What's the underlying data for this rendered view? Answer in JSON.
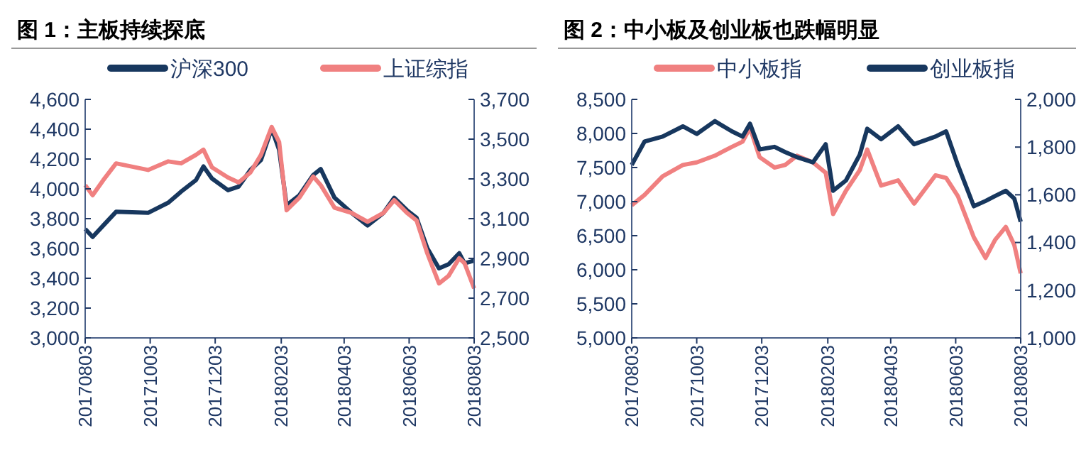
{
  "chart_data": [
    {
      "type": "line",
      "title": "图 1：主板持续探底",
      "legend": "top",
      "grid": false,
      "xlim": [
        "2017-08-03",
        "2018-08-03"
      ],
      "xticks": [
        {
          "value": "2017-08-03",
          "label": "20170803"
        },
        {
          "value": "2017-10-03",
          "label": "20171003"
        },
        {
          "value": "2017-12-03",
          "label": "20171203"
        },
        {
          "value": "2018-02-03",
          "label": "20180203"
        },
        {
          "value": "2018-04-03",
          "label": "20180403"
        },
        {
          "value": "2018-06-03",
          "label": "20180603"
        },
        {
          "value": "2018-08-03",
          "label": "20180803"
        }
      ],
      "ylim": [
        3000,
        4600
      ],
      "yticks": [
        {
          "value": 3000,
          "label": "3,000"
        },
        {
          "value": 3200,
          "label": "3,200"
        },
        {
          "value": 3400,
          "label": "3,400"
        },
        {
          "value": 3600,
          "label": "3,600"
        },
        {
          "value": 3800,
          "label": "3,800"
        },
        {
          "value": 4000,
          "label": "4,000"
        },
        {
          "value": 4200,
          "label": "4,200"
        },
        {
          "value": 4400,
          "label": "4,400"
        },
        {
          "value": 4600,
          "label": "4,600"
        }
      ],
      "y2lim": [
        2500,
        3700
      ],
      "y2ticks": [
        {
          "value": 2500,
          "label": "2,500"
        },
        {
          "value": 2700,
          "label": "2,700"
        },
        {
          "value": 2900,
          "label": "2,900"
        },
        {
          "value": 3100,
          "label": "3,100"
        },
        {
          "value": 3300,
          "label": "3,300"
        },
        {
          "value": 3500,
          "label": "3,500"
        },
        {
          "value": 3700,
          "label": "3,700"
        }
      ],
      "x": [
        "2017-08-03",
        "2017-08-10",
        "2017-08-20",
        "2017-09-01",
        "2017-10-01",
        "2017-10-20",
        "2017-11-01",
        "2017-11-15",
        "2017-11-22",
        "2017-11-30",
        "2017-12-15",
        "2017-12-25",
        "2018-01-05",
        "2018-01-15",
        "2018-01-25",
        "2018-02-01",
        "2018-02-08",
        "2018-02-20",
        "2018-03-05",
        "2018-03-12",
        "2018-03-25",
        "2018-04-10",
        "2018-04-25",
        "2018-05-10",
        "2018-05-20",
        "2018-06-01",
        "2018-06-10",
        "2018-06-20",
        "2018-07-01",
        "2018-07-10",
        "2018-07-20",
        "2018-07-25",
        "2018-08-03"
      ],
      "series": [
        {
          "name": "沪深300",
          "color": "#17375e",
          "values": [
            3731,
            3677,
            3754,
            3846,
            3839,
            3907,
            3981,
            4059,
            4150,
            4069,
            3991,
            4015,
            4126,
            4194,
            4404,
            4262,
            3890,
            3957,
            4093,
            4133,
            3940,
            3839,
            3754,
            3839,
            3940,
            3856,
            3805,
            3602,
            3467,
            3494,
            3568,
            3501,
            3518
          ]
        },
        {
          "name": "上证综指",
          "color": "#f08080",
          "axis": "y2",
          "values": [
            3269,
            3218,
            3294,
            3378,
            3345,
            3388,
            3378,
            3421,
            3447,
            3358,
            3307,
            3282,
            3332,
            3421,
            3561,
            3485,
            3142,
            3206,
            3312,
            3269,
            3155,
            3129,
            3084,
            3129,
            3193,
            3129,
            3091,
            2926,
            2774,
            2812,
            2901,
            2876,
            2749
          ]
        }
      ]
    },
    {
      "type": "line",
      "title": "图 2：中小板及创业板也跌幅明显",
      "legend": "top",
      "grid": false,
      "xlim": [
        "2017-08-03",
        "2018-08-03"
      ],
      "xticks": [
        {
          "value": "2017-08-03",
          "label": "20170803"
        },
        {
          "value": "2017-10-03",
          "label": "20171003"
        },
        {
          "value": "2017-12-03",
          "label": "20171203"
        },
        {
          "value": "2018-02-03",
          "label": "20180203"
        },
        {
          "value": "2018-04-03",
          "label": "20180403"
        },
        {
          "value": "2018-06-03",
          "label": "20180603"
        },
        {
          "value": "2018-08-03",
          "label": "20180803"
        }
      ],
      "ylim": [
        5000,
        8500
      ],
      "yticks": [
        {
          "value": 5000,
          "label": "5,000"
        },
        {
          "value": 5500,
          "label": "5,500"
        },
        {
          "value": 6000,
          "label": "6,000"
        },
        {
          "value": 6500,
          "label": "6,500"
        },
        {
          "value": 7000,
          "label": "7,000"
        },
        {
          "value": 7500,
          "label": "7,500"
        },
        {
          "value": 8000,
          "label": "8,000"
        },
        {
          "value": 8500,
          "label": "8,500"
        }
      ],
      "y2lim": [
        1000,
        2000
      ],
      "y2ticks": [
        {
          "value": 1000,
          "label": "1,000"
        },
        {
          "value": 1200,
          "label": "1,200"
        },
        {
          "value": 1400,
          "label": "1,400"
        },
        {
          "value": 1600,
          "label": "1,600"
        },
        {
          "value": 1800,
          "label": "1,800"
        },
        {
          "value": 2000,
          "label": "2,000"
        }
      ],
      "x": [
        "2017-08-03",
        "2017-08-15",
        "2017-09-01",
        "2017-09-20",
        "2017-10-03",
        "2017-10-20",
        "2017-11-05",
        "2017-11-15",
        "2017-11-22",
        "2017-12-01",
        "2017-12-15",
        "2017-12-25",
        "2018-01-05",
        "2018-01-20",
        "2018-02-01",
        "2018-02-08",
        "2018-02-20",
        "2018-03-05",
        "2018-03-12",
        "2018-03-25",
        "2018-04-10",
        "2018-04-25",
        "2018-05-15",
        "2018-05-25",
        "2018-06-05",
        "2018-06-20",
        "2018-07-01",
        "2018-07-10",
        "2018-07-20",
        "2018-07-28",
        "2018-08-03"
      ],
      "series": [
        {
          "name": "中小板指",
          "color": "#f08080",
          "values": [
            6947,
            7098,
            7371,
            7538,
            7576,
            7674,
            7803,
            7879,
            8083,
            7652,
            7500,
            7538,
            7674,
            7576,
            7424,
            6818,
            7159,
            7462,
            7765,
            7235,
            7311,
            6970,
            7386,
            7348,
            7083,
            6477,
            6174,
            6439,
            6629,
            6364,
            5947
          ]
        },
        {
          "name": "创业板指",
          "color": "#17375e",
          "axis": "y2",
          "values": [
            1725,
            1823,
            1844,
            1887,
            1855,
            1909,
            1866,
            1844,
            1898,
            1790,
            1801,
            1779,
            1758,
            1736,
            1812,
            1617,
            1660,
            1768,
            1877,
            1833,
            1887,
            1812,
            1844,
            1866,
            1725,
            1552,
            1574,
            1595,
            1617,
            1584,
            1487
          ]
        }
      ]
    }
  ]
}
